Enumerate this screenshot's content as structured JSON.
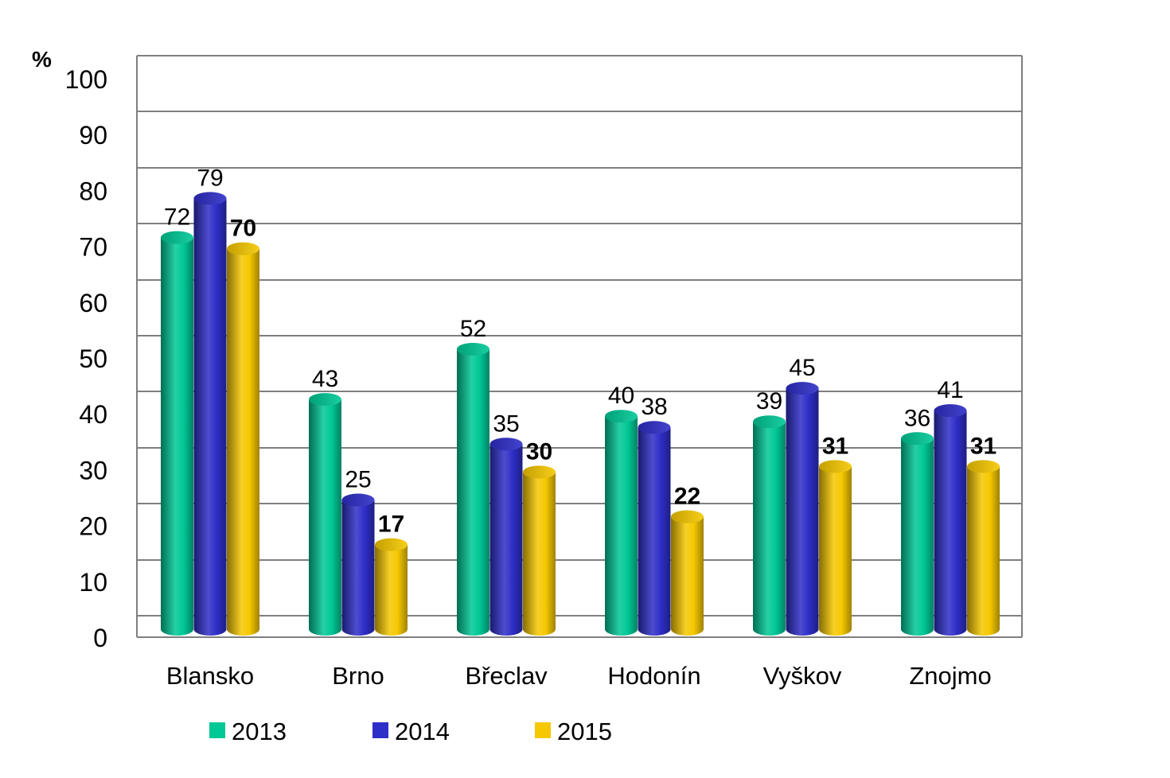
{
  "chart_data": {
    "type": "bar",
    "unit_label": "%",
    "categories": [
      "Blansko",
      "Brno",
      "Břeclav",
      "Hodonín",
      "Vyškov",
      "Znojmo"
    ],
    "series": [
      {
        "name": "2013",
        "values": [
          72,
          43,
          52,
          40,
          39,
          36
        ],
        "color": "#00c896",
        "labels_bold": false
      },
      {
        "name": "2014",
        "values": [
          79,
          25,
          35,
          38,
          45,
          41
        ],
        "color": "#2e2ec8",
        "labels_bold": false
      },
      {
        "name": "2015",
        "values": [
          70,
          17,
          30,
          22,
          31,
          31
        ],
        "color": "#f5c800",
        "labels_bold": true
      }
    ],
    "ylim": [
      0,
      100
    ],
    "yticks": [
      "0",
      "10",
      "20",
      "30",
      "40",
      "50",
      "60",
      "70",
      "80",
      "90",
      "100"
    ],
    "grid": true,
    "legend_position": "bottom",
    "title": "",
    "xlabel": "",
    "ylabel": ""
  }
}
